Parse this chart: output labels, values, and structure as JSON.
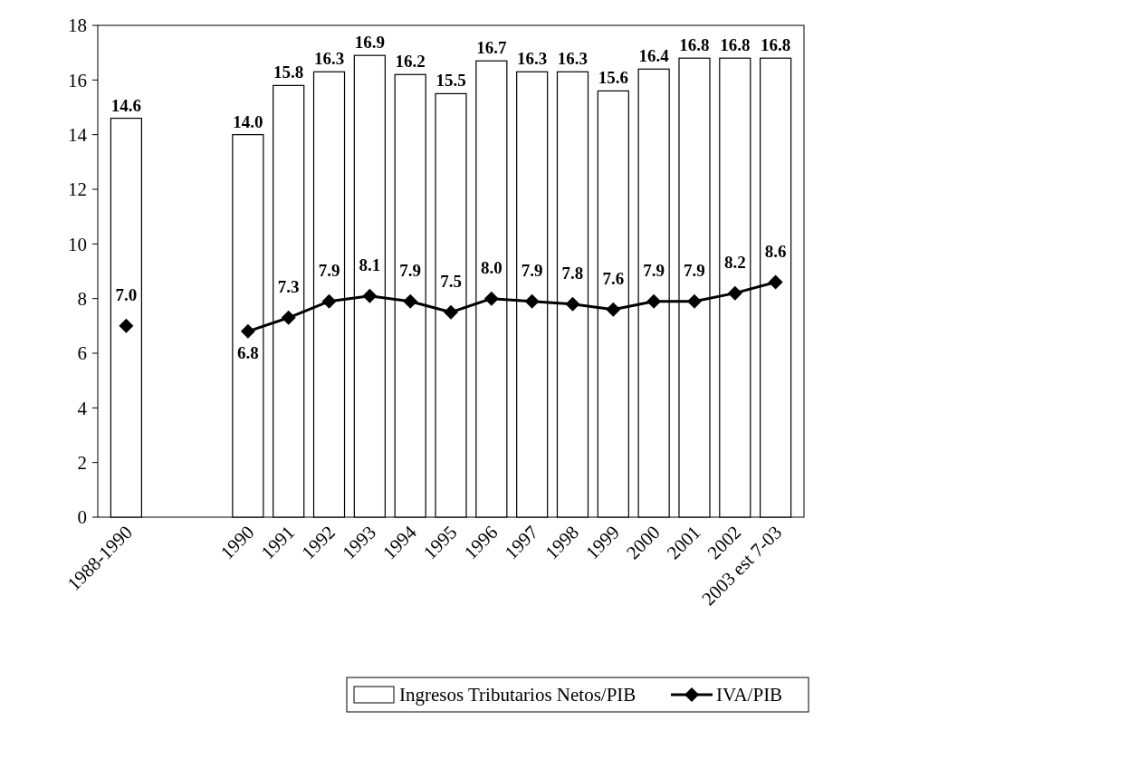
{
  "chart_data": {
    "type": "bar",
    "categories": [
      "1988-1990",
      null,
      null,
      "1990",
      "1991",
      "1992",
      "1993",
      "1994",
      "1995",
      "1996",
      "1997",
      "1998",
      "1999",
      "2000",
      "2001",
      "2002",
      "2003 est 7-03"
    ],
    "series": [
      {
        "name": "Ingresos Tributarios Netos/PIB",
        "color": "#ffffff",
        "values": [
          14.6,
          null,
          null,
          14.0,
          15.8,
          16.3,
          16.9,
          16.2,
          15.5,
          16.7,
          16.3,
          16.3,
          15.6,
          16.4,
          16.8,
          16.8,
          16.8
        ],
        "value_labels": [
          "14.6",
          null,
          null,
          "14.0",
          "15.8",
          "16.3",
          "16.9",
          "16.2",
          "15.5",
          "16.7",
          "16.3",
          "16.3",
          "15.6",
          "16.4",
          "16.8",
          "16.8",
          "16.8"
        ]
      },
      {
        "name": "IVA/PIB",
        "type": "line",
        "color": "#000000",
        "marker": "diamond",
        "values": [
          7.0,
          null,
          null,
          6.8,
          7.3,
          7.9,
          8.1,
          7.9,
          7.5,
          8.0,
          7.9,
          7.8,
          7.6,
          7.9,
          7.9,
          8.2,
          8.6
        ],
        "value_labels": [
          "7.0",
          null,
          null,
          "6.8",
          "7.3",
          "7.9",
          "8.1",
          "7.9",
          "7.5",
          "8.0",
          "7.9",
          "7.8",
          "7.6",
          "7.9",
          "7.9",
          "8.2",
          "8.6"
        ]
      }
    ],
    "ylim": [
      0,
      18
    ],
    "yticks": [
      0,
      2,
      4,
      6,
      8,
      10,
      12,
      14,
      16,
      18
    ],
    "grid": false,
    "legend": "bottom"
  }
}
